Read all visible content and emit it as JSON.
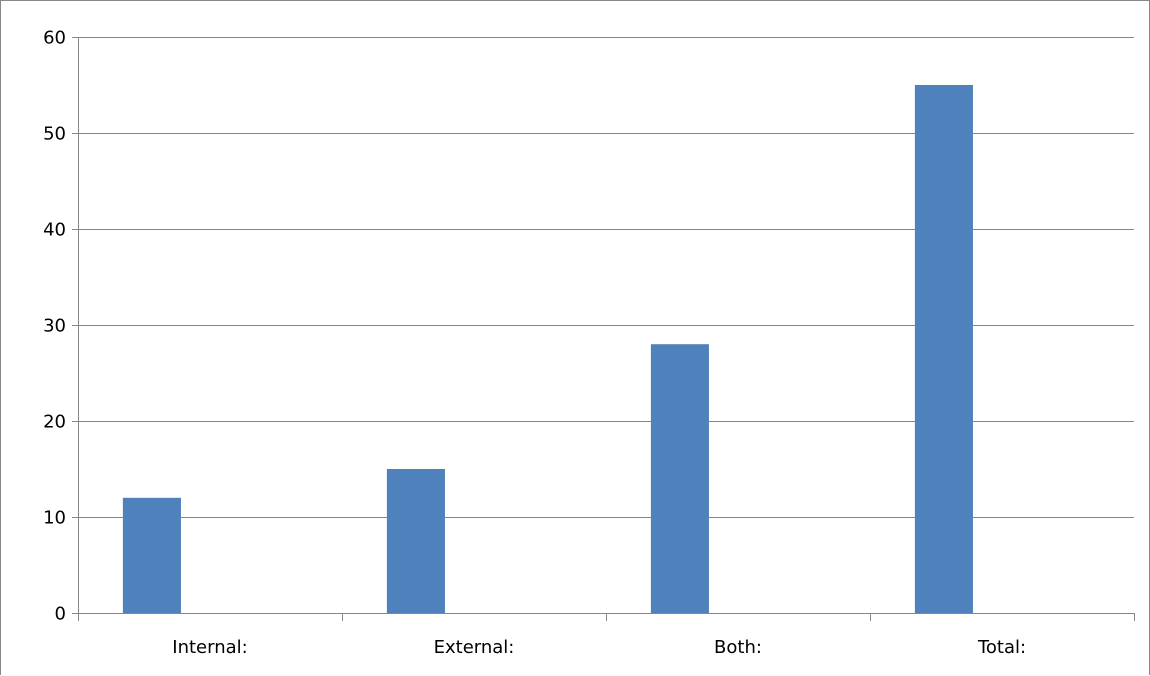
{
  "chart_data": {
    "type": "bar",
    "categories": [
      "Internal:",
      "External:",
      "Both:",
      "Total:"
    ],
    "series": [
      {
        "values": [
          12,
          15,
          28,
          55
        ]
      }
    ],
    "y_ticks": [
      "0",
      "10",
      "20",
      "30",
      "40",
      "50",
      "60"
    ],
    "title": "",
    "xlabel": "",
    "ylabel": "",
    "ylim": [
      0,
      60
    ],
    "grid": true,
    "legend": "none",
    "colors": {
      "bar": "#4f81bd",
      "grid": "#868686",
      "axis": "#868686"
    }
  }
}
